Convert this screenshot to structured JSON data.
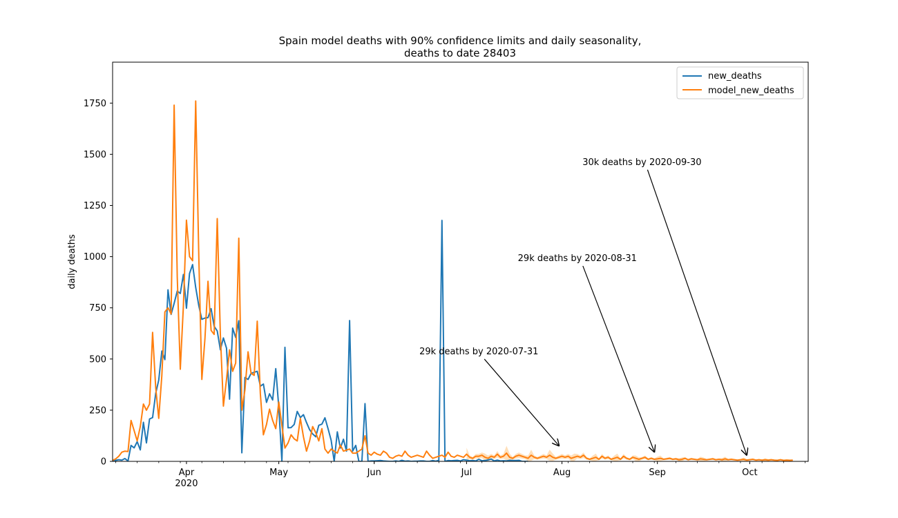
{
  "chart_data": {
    "type": "line",
    "title_line1": "Spain model deaths with 90% confidence limits and daily seasonality,",
    "title_line2": "deaths to date 28403",
    "ylabel": "daily deaths",
    "xlabel": "",
    "ylim": [
      0,
      1950
    ],
    "xlim": [
      "2020-03-08",
      "2020-10-20"
    ],
    "y_ticks": [
      0,
      250,
      500,
      750,
      1000,
      1250,
      1500,
      1750
    ],
    "x_ticks": [
      {
        "date": "2020-04-01",
        "label": "Apr",
        "sublabel": "2020"
      },
      {
        "date": "2020-05-01",
        "label": "May",
        "sublabel": ""
      },
      {
        "date": "2020-06-01",
        "label": "Jun",
        "sublabel": ""
      },
      {
        "date": "2020-07-01",
        "label": "Jul",
        "sublabel": ""
      },
      {
        "date": "2020-08-01",
        "label": "Aug",
        "sublabel": ""
      },
      {
        "date": "2020-09-01",
        "label": "Sep",
        "sublabel": ""
      },
      {
        "date": "2020-10-01",
        "label": "Oct",
        "sublabel": ""
      }
    ],
    "legend_position": "top-right",
    "series": [
      {
        "name": "new_deaths",
        "color": "#1f77b4",
        "start": "2020-03-08",
        "values": [
          5,
          5,
          8,
          6,
          14,
          2,
          78,
          66,
          96,
          56,
          191,
          90,
          207,
          214,
          332,
          397,
          539,
          497,
          838,
          718,
          772,
          832,
          820,
          913,
          748,
          918,
          961,
          850,
          760,
          694,
          700,
          702,
          746,
          660,
          637,
          545,
          603,
          553,
          304,
          651,
          605,
          687,
          42,
          410,
          400,
          430,
          435,
          440,
          367,
          378,
          288,
          330,
          300,
          453,
          263,
          0,
          557,
          164,
          165,
          180,
          244,
          214,
          228,
          190,
          155,
          134,
          120,
          176,
          182,
          213,
          160,
          103,
          0,
          144,
          65,
          108,
          50,
          688,
          50,
          78,
          0,
          0,
          282,
          0,
          2,
          2,
          3,
          4,
          2,
          1,
          0,
          0,
          2,
          0,
          5,
          1,
          2,
          0,
          1,
          1,
          2,
          2,
          0,
          0,
          4,
          1,
          5,
          1177,
          0,
          4,
          3,
          4,
          5,
          2,
          8,
          6,
          3,
          4,
          2,
          10,
          3,
          4,
          7,
          11,
          2,
          6,
          2,
          3,
          2,
          5,
          4,
          4,
          5,
          0,
          0,
          0
        ]
      },
      {
        "name": "model_new_deaths",
        "color": "#ff7f0e",
        "start": "2020-03-08",
        "values": [
          5,
          12,
          25,
          45,
          50,
          48,
          200,
          150,
          100,
          170,
          280,
          250,
          280,
          630,
          360,
          210,
          420,
          730,
          750,
          720,
          1740,
          900,
          450,
          760,
          1178,
          1000,
          980,
          1760,
          1000,
          400,
          600,
          880,
          640,
          620,
          1186,
          620,
          270,
          400,
          545,
          440,
          480,
          1090,
          250,
          350,
          535,
          430,
          420,
          685,
          330,
          130,
          180,
          255,
          200,
          160,
          290,
          175,
          65,
          90,
          130,
          110,
          100,
          210,
          120,
          50,
          100,
          170,
          140,
          100,
          160,
          60,
          40,
          60,
          50,
          40,
          80,
          50,
          55,
          60,
          40,
          40,
          50,
          60,
          125,
          40,
          30,
          45,
          35,
          30,
          50,
          40,
          20,
          15,
          25,
          30,
          25,
          50,
          30,
          20,
          25,
          30,
          25,
          20,
          50,
          30,
          15,
          20,
          25,
          30,
          20,
          45,
          25,
          20,
          30,
          25,
          20,
          35,
          20,
          15,
          25,
          25,
          30,
          20,
          15,
          25,
          20,
          35,
          20,
          25,
          40,
          20,
          15,
          25,
          30,
          25,
          20,
          15,
          30,
          20,
          15,
          20,
          25,
          20,
          30,
          20,
          15,
          20,
          25,
          20,
          25,
          15,
          20,
          25,
          20,
          30,
          15,
          10,
          15,
          20,
          10,
          25,
          15,
          20,
          10,
          15,
          20,
          10,
          25,
          15,
          10,
          20,
          15,
          10,
          15,
          20,
          10,
          15,
          10,
          12,
          15,
          10,
          12,
          15,
          10,
          12,
          8,
          10,
          15,
          8,
          12,
          10,
          8,
          12,
          10,
          8,
          10,
          12,
          8,
          10,
          8,
          12,
          8,
          10,
          8,
          6,
          8,
          10,
          6,
          8,
          10,
          6,
          8,
          6,
          8,
          6,
          8,
          6,
          5,
          8,
          5,
          6,
          5,
          6
        ]
      }
    ],
    "confidence_band": {
      "name": "90% confidence limits",
      "color": "#ffc57f",
      "start": "2020-07-01",
      "end": "2020-10-20"
    },
    "annotations": [
      {
        "text": "29k deaths by 2020-07-31",
        "point_date": "2020-07-31",
        "point_value": 70,
        "text_date": "2020-07-05",
        "text_value": 540
      },
      {
        "text": "29k deaths by 2020-08-31",
        "point_date": "2020-08-31",
        "point_value": 40,
        "text_date": "2020-08-06",
        "text_value": 995
      },
      {
        "text": "30k deaths by 2020-09-30",
        "point_date": "2020-09-30",
        "point_value": 25,
        "text_date": "2020-08-27",
        "text_value": 1465
      }
    ]
  }
}
